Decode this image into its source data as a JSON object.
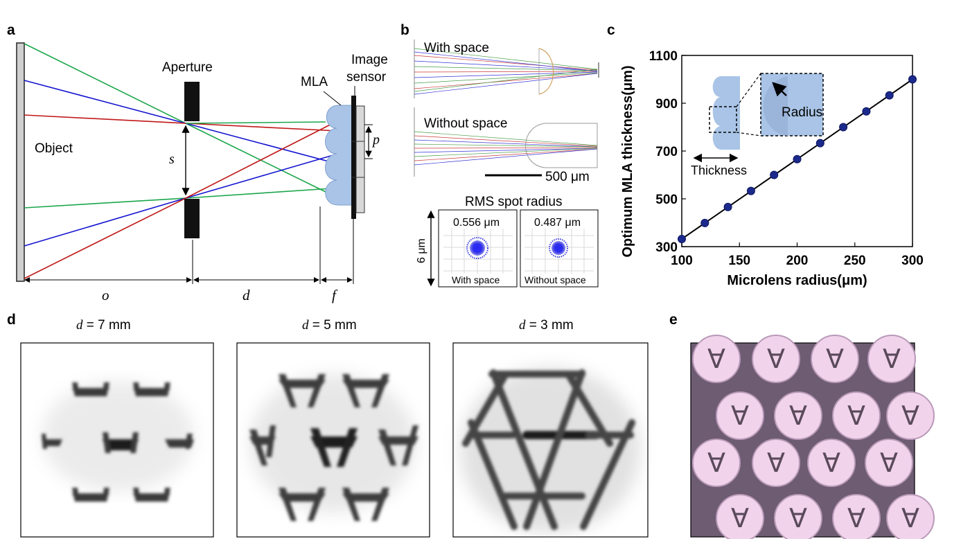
{
  "panels": {
    "a": {
      "label": "a",
      "aperture": "Aperture",
      "mla": "MLA",
      "sensor_line1": "Image",
      "sensor_line2": "sensor",
      "object": "Object",
      "s": "s",
      "p": "p",
      "o": "o",
      "d": "d",
      "f": "f"
    },
    "b": {
      "label": "b",
      "with_space": "With space",
      "without_space": "Without space",
      "scale": "500 μm",
      "rms_title": "RMS spot radius",
      "spot1_value": "0.556 μm",
      "spot2_value": "0.487 μm",
      "spot1_caption": "With space",
      "spot2_caption": "Without space",
      "height_label": "6 μm"
    },
    "c": {
      "label": "c",
      "inset_radius": "Radius",
      "inset_thickness": "Thickness"
    },
    "d": {
      "label": "d",
      "images": [
        {
          "caption_var": "d",
          "caption_rest": " = 7 mm"
        },
        {
          "caption_var": "d",
          "caption_rest": " = 5 mm"
        },
        {
          "caption_var": "d",
          "caption_rest": " = 3 mm"
        }
      ]
    },
    "e": {
      "label": "e"
    }
  },
  "colors": {
    "green_ray": "#1aa64a",
    "blue_ray": "#1414d0",
    "red_ray": "#c01818",
    "lens_fill": "#a9c4e6",
    "marker": "#1c2a8c"
  },
  "chart_data": {
    "type": "scatter",
    "xlabel": "Microlens radius(μm)",
    "ylabel": "Optimum MLA thickness(μm)",
    "xlim": [
      100,
      300
    ],
    "ylim": [
      300,
      1100
    ],
    "xticks": [
      100,
      150,
      200,
      250,
      300
    ],
    "yticks": [
      300,
      500,
      700,
      900,
      1100
    ],
    "x": [
      100,
      120,
      140,
      160,
      180,
      200,
      220,
      240,
      260,
      280,
      300
    ],
    "y": [
      332,
      399,
      466,
      533,
      600,
      666,
      733,
      800,
      866,
      933,
      1000
    ],
    "fit_line": true,
    "grid": false
  }
}
